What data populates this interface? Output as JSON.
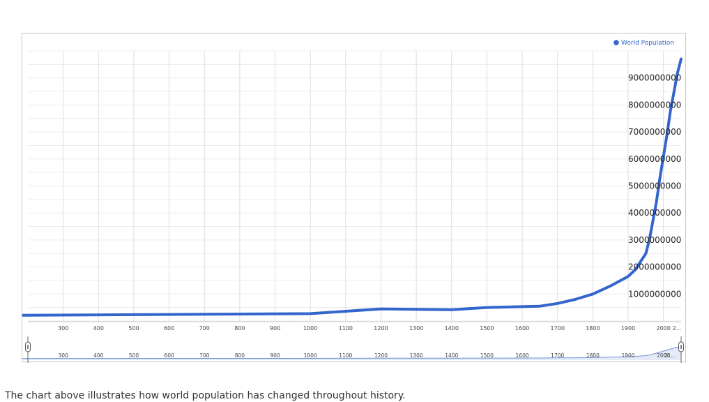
{
  "chart_data": {
    "type": "line",
    "series": [
      {
        "name": "World Population",
        "color": "#3366cc",
        "x": [
          1,
          1000,
          1200,
          1400,
          1500,
          1650,
          1700,
          1750,
          1800,
          1850,
          1900,
          1920,
          1940,
          1950,
          1960,
          1970,
          1980,
          1990,
          2000,
          2010,
          2020,
          2030,
          2040,
          2050
        ],
        "values": [
          200000000,
          275000000,
          450000000,
          420000000,
          500000000,
          550000000,
          650000000,
          800000000,
          1000000000,
          1300000000,
          1650000000,
          1900000000,
          2300000000,
          2500000000,
          3000000000,
          3700000000,
          4400000000,
          5300000000,
          6100000000,
          6900000000,
          7800000000,
          8500000000,
          9200000000,
          9700000000
        ]
      }
    ],
    "y_ticks": [
      "1000000000",
      "2000000000",
      "3000000000",
      "4000000000",
      "5000000000",
      "6000000000",
      "7000000000",
      "8000000000",
      "9000000000"
    ],
    "x_ticks": [
      "300",
      "400",
      "500",
      "600",
      "700",
      "800",
      "900",
      "1000",
      "1100",
      "1200",
      "1300",
      "1400",
      "1500",
      "1600",
      "1700",
      "1800",
      "1900",
      "2000",
      "2..."
    ],
    "navigator_ticks": [
      "300",
      "400",
      "500",
      "600",
      "700",
      "800",
      "900",
      "1000",
      "1100",
      "1200",
      "1300",
      "1400",
      "1500",
      "1600",
      "1700",
      "1800",
      "1900",
      "2000",
      "21..."
    ],
    "xlim": [
      200,
      2050
    ],
    "ylim": [
      0,
      10000000000
    ],
    "grid": true,
    "legend_position": "top-right",
    "y_axis_side": "right"
  },
  "caption": "The chart above illustrates how world population has changed throughout history."
}
